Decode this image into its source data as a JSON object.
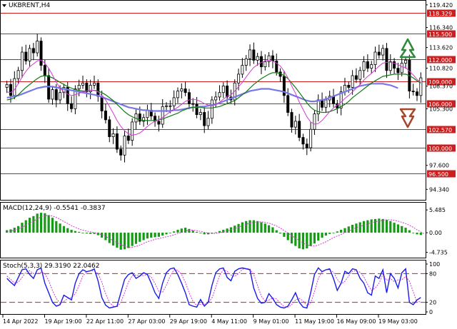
{
  "header": {
    "symbol_label": "UKBRENT,H4"
  },
  "colors": {
    "hline": "#cc1e1e",
    "bull_candle": "#ffffff",
    "bear_candle": "#000000",
    "ma_fast": "#d23ad2",
    "ma_mid": "#127a12",
    "ma_slow": "#7777e6",
    "macd_hist": "#149a14",
    "macd_signal": "#d23ad2",
    "stoch_main": "#1a1ae6",
    "stoch_signal": "#d23ad2",
    "stoch_level": "#cc1e1e",
    "up_arrow": "#2f8a3a",
    "down_arrow": "#a8462a",
    "price_label_bg": "#cc1e1e",
    "price_label_text": "#ffffff"
  },
  "chart_data": [
    {
      "type": "line",
      "panel": "price",
      "title": "UKBRENT,H4",
      "ylim": [
        93.5,
        119.5
      ],
      "y_ticks": [
        "119.420",
        "116.340",
        "113.620",
        "110.820",
        "108.370",
        "105.300",
        "102.570",
        "97.600",
        "94.340"
      ],
      "x_ticks": [
        "14 Apr 2022",
        "19 Apr 19:00",
        "22 Apr 11:00",
        "27 Apr 03:00",
        "29 Apr 19:00",
        "4 May 11:00",
        "9 May 01:00",
        "11 May 19:00",
        "16 May 09:00",
        "19 May 03:00"
      ],
      "levels": [
        {
          "value": 118.329,
          "label": "118.329"
        },
        {
          "value": 115.5,
          "label": "115.500"
        },
        {
          "value": 112.0,
          "label": "112.000"
        },
        {
          "value": 109.0,
          "label": "109.000"
        },
        {
          "value": 106.0,
          "label": "106.000"
        },
        {
          "value": 102.57,
          "label": "102.570"
        },
        {
          "value": 100.0,
          "label": "100.000"
        },
        {
          "value": 96.5,
          "label": "96.500"
        }
      ],
      "series": [
        {
          "key": "close",
          "values": [
            108.6,
            107.1,
            109.4,
            110.5,
            113.0,
            111.8,
            113.5,
            112.9,
            114.5,
            111.2,
            109.8,
            106.6,
            107.9,
            106.5,
            107.5,
            108.2,
            106.0,
            105.3,
            108.0,
            108.5,
            108.8,
            107.6,
            108.5,
            108.8,
            107.0,
            105.0,
            103.8,
            101.5,
            101.9,
            99.8,
            99.0,
            101.6,
            101.0,
            103.5,
            104.6,
            103.6,
            104.1,
            105.1,
            104.3,
            103.6,
            103.2,
            105.6,
            105.7,
            105.7,
            106.8,
            107.7,
            108.0,
            107.5,
            106.0,
            105.9,
            104.5,
            104.8,
            103.0,
            104.0,
            106.5,
            106.9,
            107.5,
            108.4,
            106.9,
            106.5,
            108.8,
            110.0,
            111.2,
            112.1,
            113.3,
            111.9,
            112.4,
            111.0,
            111.7,
            112.5,
            111.8,
            110.3,
            109.7,
            107.1,
            104.8,
            102.8,
            103.6,
            101.4,
            100.5,
            100.0,
            102.5,
            104.6,
            106.5,
            105.5,
            106.5,
            107.0,
            106.0,
            105.4,
            107.6,
            108.5,
            108.2,
            109.8,
            109.3,
            110.5,
            111.7,
            110.8,
            111.3,
            113.0,
            112.6,
            113.5,
            110.5,
            111.7,
            110.8,
            110.2,
            111.5,
            111.9,
            107.7,
            107.6,
            107.1,
            109.5
          ]
        },
        {
          "key": "ma_fast",
          "values": [
            107.6,
            107.5,
            107.9,
            108.7,
            109.6,
            110.4,
            111.0,
            111.4,
            111.8,
            111.9,
            111.5,
            110.8,
            109.9,
            108.9,
            108.1,
            107.6,
            107.3,
            107.1,
            107.2,
            107.4,
            107.6,
            107.7,
            107.8,
            107.8,
            107.6,
            107.1,
            106.5,
            105.6,
            104.7,
            103.7,
            102.9,
            102.3,
            101.9,
            101.7,
            101.8,
            102.0,
            102.4,
            102.9,
            103.3,
            103.6,
            103.8,
            104.1,
            104.5,
            104.9,
            105.2,
            105.5,
            105.9,
            106.3,
            106.5,
            106.6,
            106.5,
            106.3,
            106.0,
            105.8,
            105.7,
            105.9,
            106.2,
            106.6,
            107.0,
            107.2,
            107.7,
            108.3,
            108.9,
            109.6,
            110.3,
            110.9,
            111.3,
            111.6,
            111.8,
            111.9,
            111.8,
            111.5,
            111.1,
            110.4,
            109.5,
            108.4,
            107.4,
            106.2,
            105.2,
            104.2,
            103.5,
            103.2,
            103.3,
            103.7,
            104.3,
            104.9,
            105.4,
            105.8,
            106.2,
            106.7,
            107.1,
            107.6,
            108.1,
            108.6,
            109.2,
            109.7,
            110.1,
            110.6,
            111.1,
            111.5,
            111.6,
            111.6,
            111.5,
            111.3,
            111.0,
            110.9,
            110.4,
            109.9,
            109.3,
            108.9
          ]
        },
        {
          "key": "ma_mid",
          "values": [
            106.5,
            106.6,
            106.8,
            107.2,
            107.7,
            108.2,
            108.6,
            109.0,
            109.4,
            109.7,
            109.8,
            109.7,
            109.5,
            109.2,
            108.9,
            108.6,
            108.3,
            108.1,
            107.9,
            107.8,
            107.7,
            107.7,
            107.8,
            107.8,
            107.7,
            107.5,
            107.2,
            106.8,
            106.4,
            105.9,
            105.4,
            104.9,
            104.5,
            104.2,
            104.0,
            103.8,
            103.7,
            103.7,
            103.7,
            103.7,
            103.8,
            103.9,
            104.1,
            104.3,
            104.5,
            104.7,
            105.0,
            105.2,
            105.4,
            105.5,
            105.5,
            105.5,
            105.4,
            105.4,
            105.4,
            105.5,
            105.6,
            105.8,
            106.0,
            106.2,
            106.4,
            106.8,
            107.2,
            107.6,
            108.1,
            108.6,
            109.0,
            109.4,
            109.7,
            110.0,
            110.2,
            110.2,
            110.1,
            109.8,
            109.4,
            108.8,
            108.2,
            107.5,
            106.8,
            106.1,
            105.5,
            105.1,
            104.9,
            104.8,
            104.8,
            104.9,
            105.1,
            105.3,
            105.6,
            105.9,
            106.3,
            106.8,
            107.2,
            107.6,
            108.0,
            108.4,
            108.8,
            109.1,
            109.4,
            109.7,
            109.8,
            109.9,
            110.0,
            110.0,
            110.0,
            110.0,
            109.8,
            109.5,
            109.1,
            108.8
          ]
        },
        {
          "key": "ma_slow",
          "values": [
            106.8,
            106.9,
            107.0,
            107.1,
            107.3,
            107.5,
            107.7,
            107.9,
            108.1,
            108.2,
            108.3,
            108.3,
            108.3,
            108.2,
            108.1,
            108.0,
            107.9,
            107.8,
            107.7,
            107.6,
            107.5,
            107.4,
            107.3,
            107.2,
            107.1,
            106.9,
            106.7,
            106.5,
            106.3,
            106.1,
            105.9,
            105.7,
            105.5,
            105.4,
            105.3,
            105.2,
            105.1,
            105.1,
            105.0,
            105.0,
            105.0,
            105.0,
            105.0,
            105.0,
            105.1,
            105.1,
            105.2,
            105.3,
            105.4,
            105.5,
            105.5,
            105.6,
            105.6,
            105.7,
            105.8,
            105.9,
            106.1,
            106.3,
            106.5,
            106.7,
            106.9,
            107.1,
            107.3,
            107.5,
            107.7,
            107.8,
            107.9,
            108.0,
            108.0,
            108.0,
            107.9,
            107.8,
            107.7,
            107.6,
            107.4,
            107.2,
            107.0,
            106.8,
            106.6,
            106.4,
            106.3,
            106.3,
            106.4,
            106.5,
            106.6,
            106.8,
            107.0,
            107.2,
            107.4,
            107.6,
            107.8,
            108.0,
            108.2,
            108.4,
            108.5,
            108.6,
            108.7,
            108.7,
            108.7,
            108.7,
            108.6,
            108.5,
            108.3,
            108.1
          ]
        }
      ]
    },
    {
      "type": "bar",
      "panel": "macd",
      "title": "MACD(12,24,9) -0.5541 -0.3837",
      "ylim": [
        -5.5,
        6.2
      ],
      "y_ticks": [
        "5.485",
        "0.00",
        "-4.735"
      ],
      "series": [
        {
          "name": "MACD",
          "values": [
            0.6,
            0.8,
            1.2,
            1.6,
            2.4,
            3.0,
            3.6,
            4.0,
            4.6,
            4.8,
            4.7,
            4.2,
            3.6,
            2.8,
            2.2,
            1.6,
            1.1,
            0.7,
            0.4,
            0.2,
            0.0,
            -0.2,
            -0.3,
            -0.3,
            -0.6,
            -1.2,
            -1.8,
            -2.5,
            -3.1,
            -3.6,
            -4.1,
            -4.0,
            -3.7,
            -3.2,
            -2.7,
            -2.2,
            -1.8,
            -1.4,
            -1.2,
            -1.1,
            -1.0,
            -0.7,
            -0.4,
            -0.1,
            0.3,
            0.7,
            1.0,
            1.2,
            0.9,
            0.5,
            0.2,
            -0.1,
            -0.4,
            -0.4,
            -0.2,
            0.1,
            0.4,
            0.7,
            1.0,
            1.3,
            1.7,
            2.1,
            2.5,
            2.8,
            3.0,
            3.0,
            2.8,
            2.5,
            2.2,
            1.8,
            1.3,
            0.6,
            -0.2,
            -1.0,
            -1.8,
            -2.6,
            -3.2,
            -3.8,
            -4.0,
            -3.8,
            -3.2,
            -2.6,
            -1.9,
            -1.2,
            -0.7,
            -0.3,
            0.0,
            0.3,
            0.7,
            1.1,
            1.5,
            1.9,
            2.2,
            2.5,
            2.8,
            3.0,
            3.2,
            3.3,
            3.4,
            3.3,
            3.1,
            2.8,
            2.4,
            2.0,
            1.6,
            1.2,
            0.6,
            0.0,
            -0.4,
            -0.55
          ]
        },
        {
          "name": "Signal",
          "values": [
            0.3,
            0.4,
            0.6,
            0.9,
            1.3,
            1.8,
            2.3,
            2.8,
            3.3,
            3.8,
            4.1,
            4.2,
            4.0,
            3.7,
            3.2,
            2.7,
            2.2,
            1.7,
            1.3,
            0.9,
            0.6,
            0.4,
            0.2,
            0.0,
            -0.2,
            -0.5,
            -0.9,
            -1.4,
            -1.9,
            -2.4,
            -2.9,
            -3.3,
            -3.5,
            -3.5,
            -3.3,
            -3.0,
            -2.6,
            -2.2,
            -1.9,
            -1.6,
            -1.4,
            -1.2,
            -1.0,
            -0.8,
            -0.5,
            -0.2,
            0.1,
            0.4,
            0.6,
            0.6,
            0.5,
            0.3,
            0.1,
            -0.1,
            -0.2,
            -0.2,
            0.0,
            0.2,
            0.4,
            0.7,
            1.0,
            1.3,
            1.7,
            2.0,
            2.3,
            2.5,
            2.6,
            2.6,
            2.5,
            2.3,
            2.0,
            1.6,
            1.1,
            0.5,
            -0.1,
            -0.7,
            -1.3,
            -1.9,
            -2.5,
            -2.9,
            -3.2,
            -3.2,
            -3.0,
            -2.6,
            -2.2,
            -1.7,
            -1.2,
            -0.8,
            -0.4,
            0.0,
            0.4,
            0.8,
            1.2,
            1.5,
            1.8,
            2.1,
            2.4,
            2.6,
            2.8,
            3.0,
            3.1,
            3.1,
            3.0,
            2.8,
            2.5,
            2.2,
            1.8,
            1.3,
            0.7,
            0.2,
            -0.38
          ]
        }
      ]
    },
    {
      "type": "line",
      "panel": "stochastic",
      "title": "Stoch(5,3,3) 29.3190 22.0462",
      "ylim": [
        0,
        100
      ],
      "y_ticks": [
        "100",
        "80",
        "20",
        "0"
      ],
      "levels": [
        {
          "value": 80,
          "label": "80"
        },
        {
          "value": 20,
          "label": "20"
        }
      ],
      "series": [
        {
          "name": "Main",
          "values": [
            70,
            62,
            55,
            72,
            88,
            90,
            78,
            70,
            88,
            92,
            60,
            40,
            20,
            12,
            15,
            35,
            30,
            25,
            60,
            80,
            88,
            84,
            86,
            90,
            65,
            30,
            14,
            8,
            10,
            12,
            40,
            68,
            78,
            82,
            70,
            75,
            82,
            78,
            60,
            40,
            28,
            60,
            82,
            90,
            92,
            78,
            60,
            40,
            15,
            12,
            10,
            26,
            12,
            20,
            55,
            82,
            90,
            92,
            72,
            65,
            85,
            90,
            92,
            90,
            88,
            50,
            28,
            18,
            20,
            38,
            28,
            15,
            10,
            8,
            12,
            25,
            40,
            20,
            10,
            8,
            40,
            78,
            92,
            84,
            88,
            90,
            70,
            45,
            60,
            85,
            80,
            90,
            88,
            70,
            60,
            40,
            35,
            75,
            70,
            88,
            40,
            80,
            70,
            50,
            82,
            90,
            20,
            15,
            25,
            30
          ]
        },
        {
          "name": "Signal",
          "values": [
            75,
            68,
            60,
            62,
            72,
            83,
            86,
            80,
            80,
            83,
            80,
            65,
            45,
            28,
            18,
            22,
            28,
            30,
            38,
            55,
            75,
            84,
            86,
            86,
            80,
            62,
            38,
            20,
            12,
            10,
            20,
            40,
            62,
            76,
            77,
            76,
            76,
            78,
            73,
            59,
            43,
            41,
            56,
            75,
            88,
            87,
            78,
            62,
            40,
            22,
            13,
            16,
            16,
            19,
            29,
            52,
            76,
            88,
            85,
            77,
            74,
            80,
            89,
            91,
            90,
            78,
            55,
            33,
            22,
            25,
            29,
            27,
            18,
            11,
            10,
            15,
            25,
            28,
            23,
            13,
            19,
            42,
            70,
            85,
            88,
            88,
            83,
            68,
            58,
            64,
            75,
            85,
            86,
            83,
            73,
            57,
            45,
            50,
            60,
            78,
            66,
            70,
            63,
            67,
            67,
            74,
            64,
            42,
            20,
            22
          ]
        }
      ]
    }
  ],
  "arrows": {
    "up_label": "up-trend arrow",
    "down_label": "down-trend arrow"
  }
}
